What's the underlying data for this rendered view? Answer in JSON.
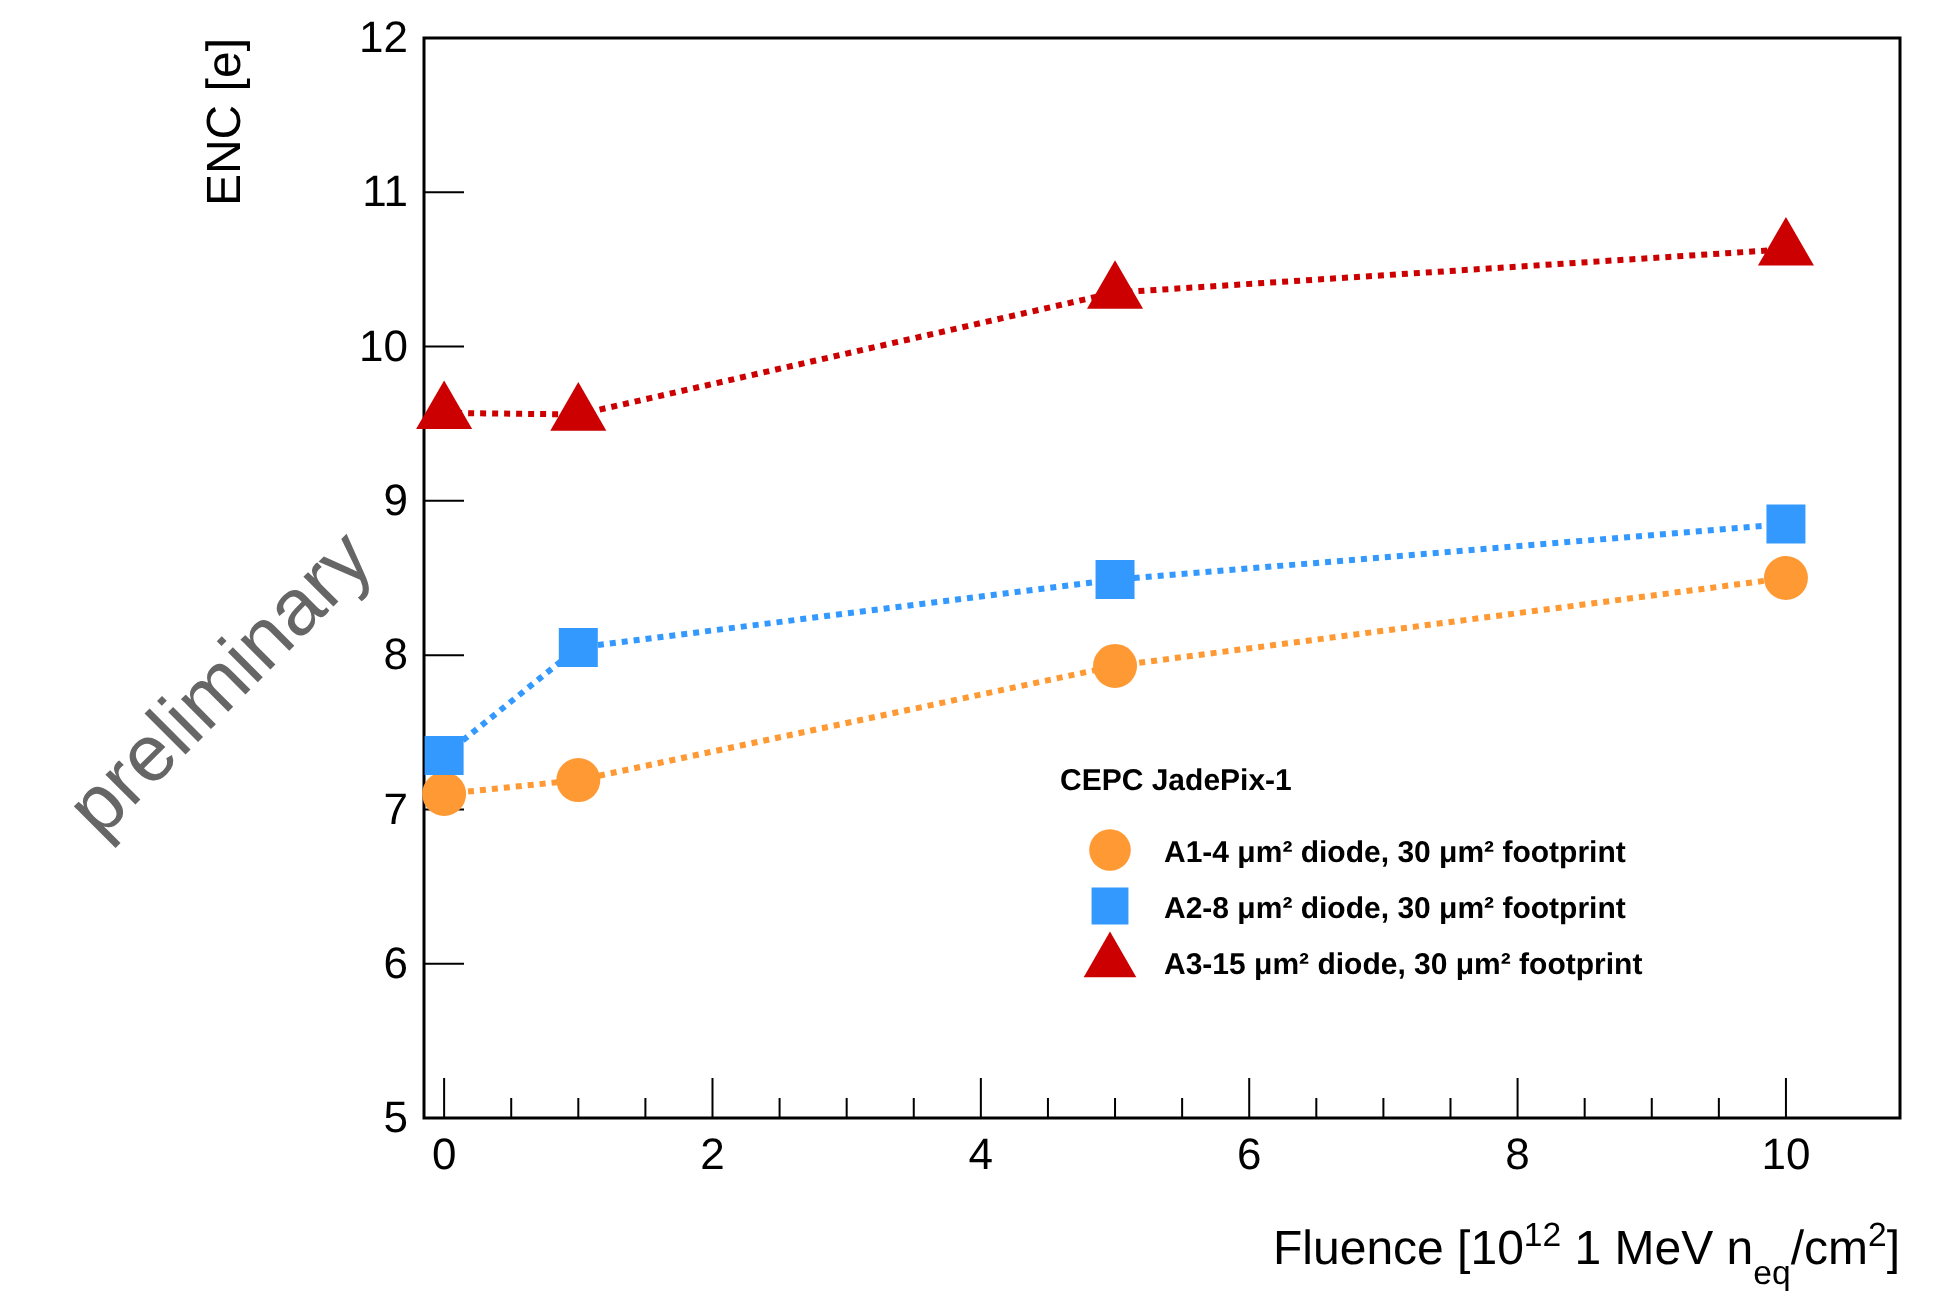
{
  "chart_data": {
    "type": "line",
    "xlabel": "Fluence [10$^{12}$ 1 MeV n$_{eq}$/cm$^{2}$]",
    "ylabel": "ENC [e]",
    "legend_title": "CEPC JadePix-1",
    "legend": "right",
    "line_style": "dotted",
    "grid": false,
    "xlim": [
      -0.15,
      10.85
    ],
    "xticks": [
      0,
      2,
      4,
      6,
      8,
      10
    ],
    "ylim": [
      5,
      12
    ],
    "yticks": [
      5,
      6,
      7,
      8,
      9,
      10,
      11,
      12
    ],
    "x": [
      0,
      1,
      5,
      10
    ],
    "series": [
      {
        "name": "A1-4 μm² diode, 30 μm² footprint",
        "color": "#ff9933",
        "marker": "circle",
        "values": [
          7.1,
          7.19,
          7.93,
          8.5
        ]
      },
      {
        "name": "A2-8 μm² diode, 30 μm² footprint",
        "color": "#3399ff",
        "marker": "square",
        "values": [
          7.35,
          8.05,
          8.49,
          8.85
        ]
      },
      {
        "name": "A3-15 μm² diode, 30 μm² footprint",
        "color": "#cc0000",
        "marker": "triangle",
        "values": [
          9.57,
          9.56,
          10.35,
          10.63
        ]
      }
    ],
    "annotations": [
      "preliminary"
    ]
  }
}
